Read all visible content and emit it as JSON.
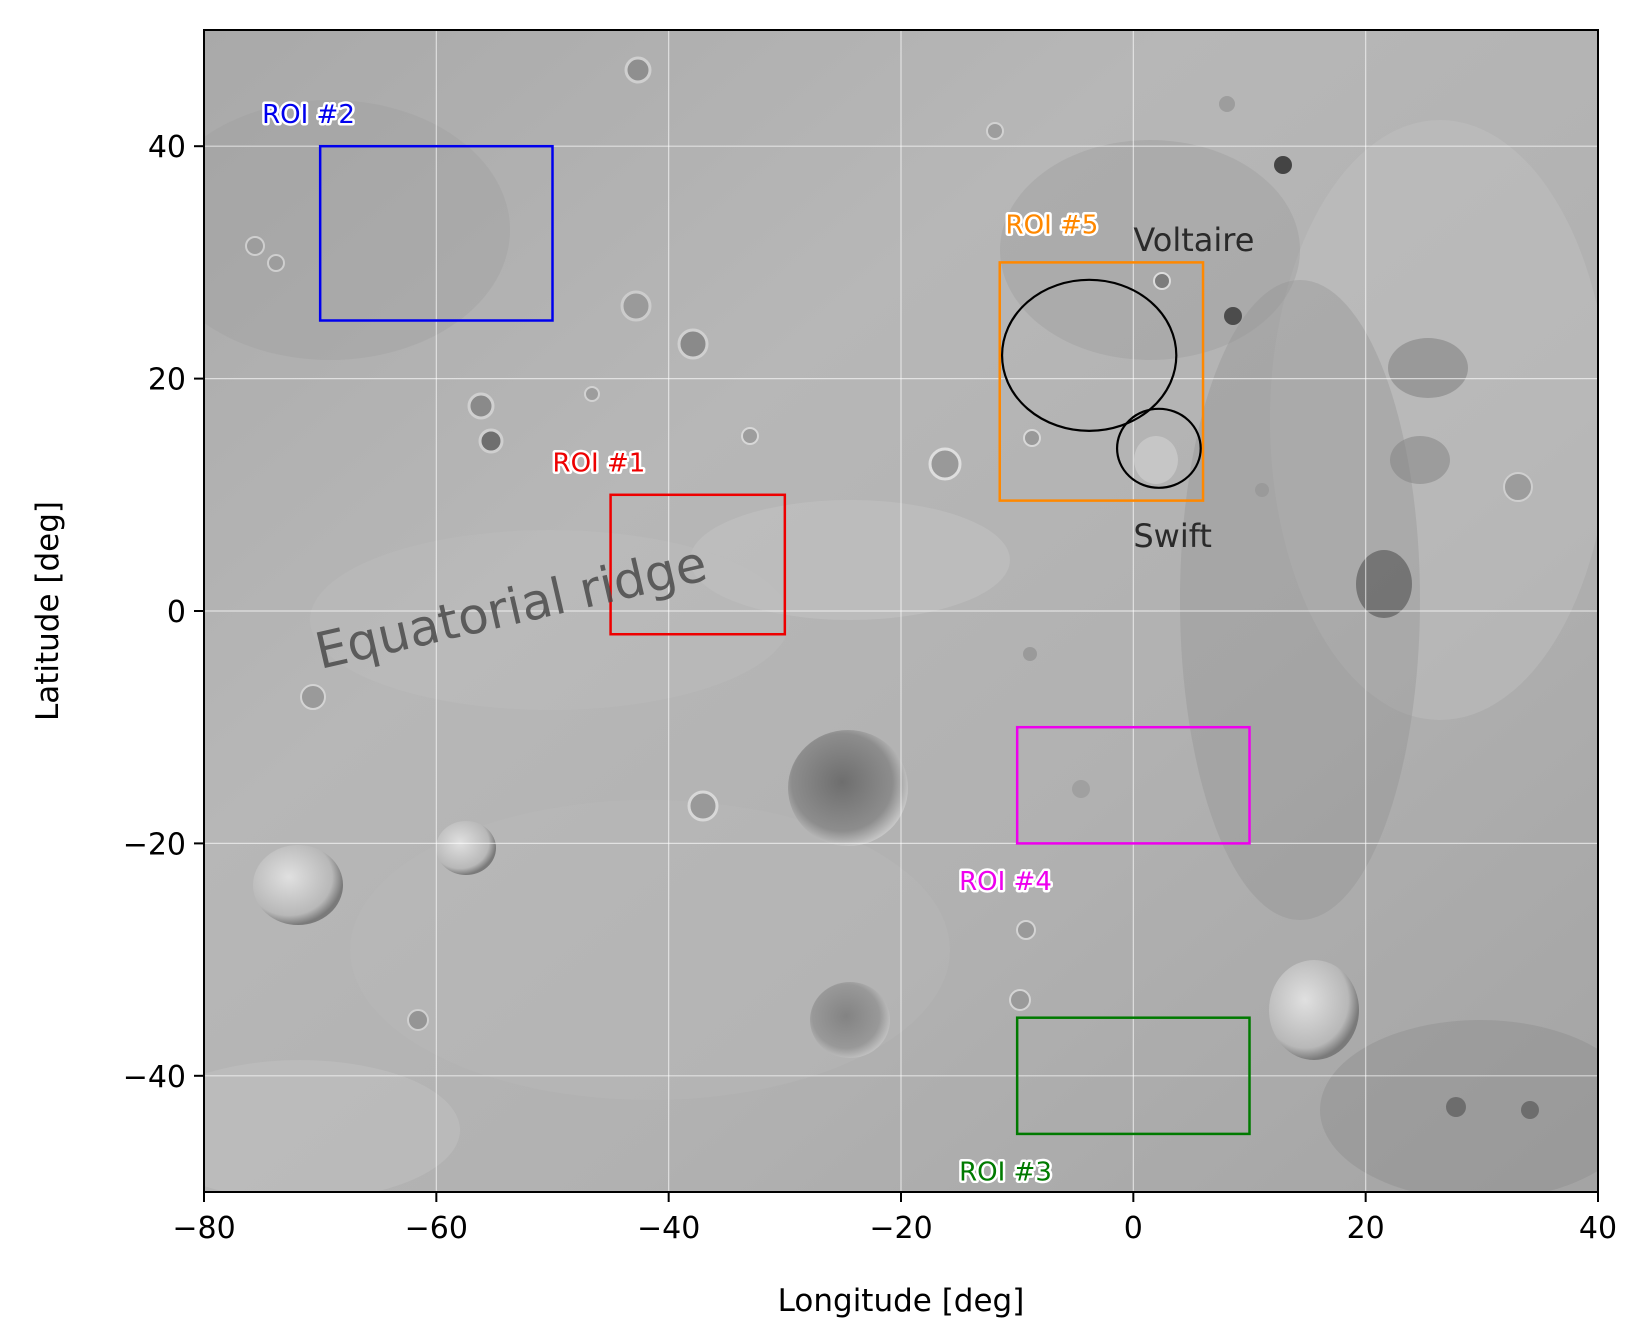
{
  "map": {
    "xlabel": "Longitude [deg]",
    "ylabel": "Latitude [deg]",
    "xlim": [
      -80,
      40
    ],
    "ylim": [
      -50,
      50
    ],
    "x_ticks": [
      -80,
      -60,
      -40,
      -20,
      0,
      20,
      40
    ],
    "y_ticks": [
      -40,
      -20,
      0,
      20,
      40
    ],
    "x_tick_labels": [
      "−80",
      "−60",
      "−40",
      "−20",
      "0",
      "20",
      "40"
    ],
    "y_tick_labels": [
      "−40",
      "−20",
      "0",
      "20",
      "40"
    ],
    "grid": true,
    "background": "grayscale lunar-like surface mosaic with craters",
    "regions": [
      {
        "label": "ROI #1",
        "color": "#ee0000",
        "lon": [
          -45,
          -30
        ],
        "lat": [
          -2,
          10
        ],
        "label_at": [
          -50,
          12
        ]
      },
      {
        "label": "ROI #2",
        "color": "#0000ee",
        "lon": [
          -70,
          -50
        ],
        "lat": [
          25,
          40
        ],
        "label_at": [
          -75,
          42
        ]
      },
      {
        "label": "ROI #3",
        "color": "#007a00",
        "lon": [
          -10,
          10
        ],
        "lat": [
          -45,
          -35
        ],
        "label_at": [
          -15,
          -49
        ]
      },
      {
        "label": "ROI #4",
        "color": "#ee00ee",
        "lon": [
          -10,
          10
        ],
        "lat": [
          -20,
          -10
        ],
        "label_at": [
          -15,
          -24
        ]
      },
      {
        "label": "ROI #5",
        "color": "#ff8800",
        "lon": [
          -11.5,
          6
        ],
        "lat": [
          9.5,
          30
        ],
        "label_at": [
          -11,
          32.5
        ]
      }
    ],
    "craters": [
      {
        "name": "Voltaire",
        "center": [
          -3.8,
          22.0
        ],
        "radius": [
          7.5,
          6.5
        ],
        "label_at": [
          0,
          31
        ]
      },
      {
        "name": "Swift",
        "center": [
          2.2,
          14.0
        ],
        "radius": [
          3.6,
          3.4
        ],
        "label_at": [
          0,
          5.5
        ]
      }
    ],
    "annotation": {
      "text": "Equatorial ridge",
      "at": [
        -70,
        -5
      ],
      "angle": -13
    }
  }
}
